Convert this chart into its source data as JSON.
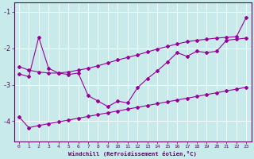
{
  "xlabel": "Windchill (Refroidissement éolien,°C)",
  "background_color": "#c8eaea",
  "line_color": "#990099",
  "xlim": [
    -0.5,
    23.5
  ],
  "ylim": [
    -4.55,
    -0.75
  ],
  "yticks": [
    -4,
    -3,
    -2,
    -1
  ],
  "xticks": [
    0,
    1,
    2,
    3,
    4,
    5,
    6,
    7,
    8,
    9,
    10,
    11,
    12,
    13,
    14,
    15,
    16,
    17,
    18,
    19,
    20,
    21,
    22,
    23
  ],
  "line_top_x": [
    0,
    1,
    2,
    3,
    4,
    5,
    6,
    7,
    8,
    9,
    10,
    11,
    12,
    13,
    14,
    15,
    16,
    17,
    18,
    19,
    20,
    21,
    22,
    23
  ],
  "line_top_y": [
    -2.5,
    -2.6,
    -2.65,
    -2.68,
    -2.68,
    -2.65,
    -2.6,
    -2.55,
    -2.48,
    -2.4,
    -2.32,
    -2.25,
    -2.18,
    -2.1,
    -2.02,
    -1.95,
    -1.88,
    -1.82,
    -1.78,
    -1.75,
    -1.72,
    -1.7,
    -1.68,
    -1.15
  ],
  "line_mid_x": [
    0,
    1,
    2,
    3,
    4,
    5,
    6,
    7,
    8,
    9,
    10,
    11,
    12,
    13,
    14,
    15,
    16,
    17,
    18,
    19,
    20,
    21,
    22,
    23
  ],
  "line_mid_y": [
    -2.7,
    -2.78,
    -1.7,
    -2.55,
    -2.68,
    -2.72,
    -2.68,
    -3.3,
    -3.45,
    -3.6,
    -3.45,
    -3.5,
    -3.08,
    -2.83,
    -2.62,
    -2.38,
    -2.12,
    -2.22,
    -2.08,
    -2.12,
    -2.08,
    -1.78,
    -1.75,
    -1.72
  ],
  "line_bot_x": [
    0,
    1,
    2,
    3,
    4,
    5,
    6,
    7,
    8,
    9,
    10,
    11,
    12,
    13,
    14,
    15,
    16,
    17,
    18,
    19,
    20,
    21,
    22,
    23
  ],
  "line_bot_y": [
    -3.88,
    -4.18,
    -4.12,
    -4.07,
    -4.02,
    -3.97,
    -3.92,
    -3.87,
    -3.82,
    -3.77,
    -3.72,
    -3.67,
    -3.62,
    -3.57,
    -3.52,
    -3.47,
    -3.42,
    -3.37,
    -3.32,
    -3.27,
    -3.22,
    -3.17,
    -3.12,
    -3.07
  ]
}
